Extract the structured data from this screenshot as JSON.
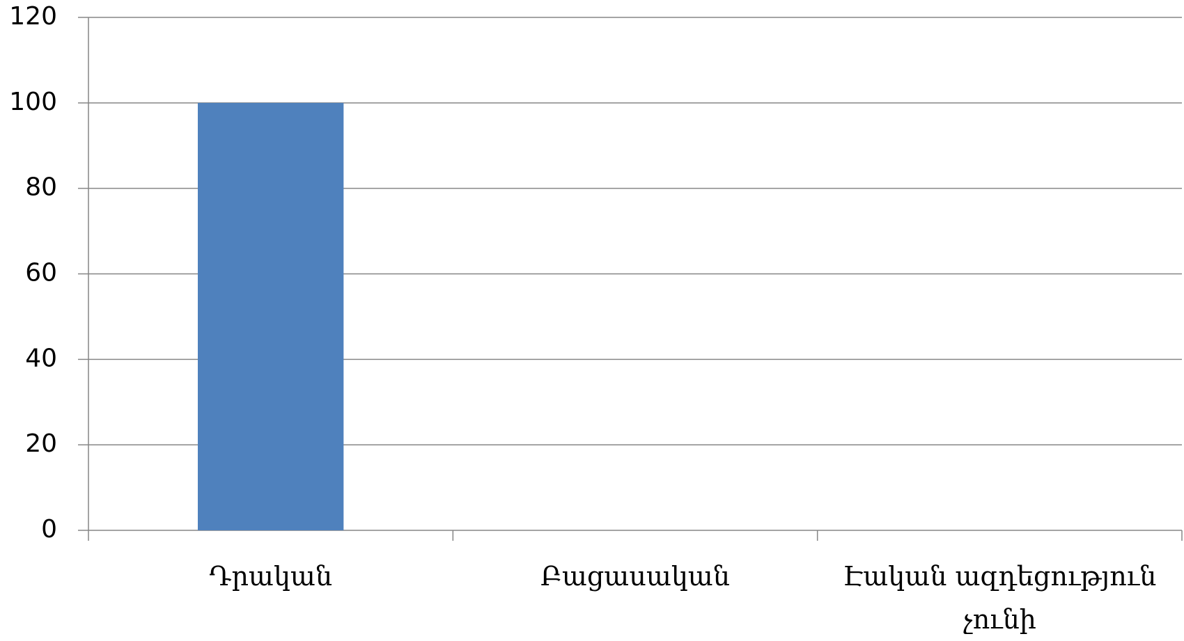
{
  "chart_data": {
    "type": "bar",
    "categories": [
      "Դրական",
      "Բացասական",
      "Էական ազդեցություն չունի"
    ],
    "values": [
      100,
      0,
      0
    ],
    "color": "#4f81bd",
    "ylim": [
      0,
      120
    ],
    "yticks": [
      0,
      20,
      40,
      60,
      80,
      100,
      120
    ],
    "grid": true
  }
}
